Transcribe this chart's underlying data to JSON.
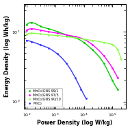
{
  "title": "",
  "xlabel": "Power Density (log W/kg)",
  "ylabel": "Energy Density (log Wh/kg)",
  "xlim": [
    80,
    300000.0
  ],
  "ylim": [
    0.8,
    25
  ],
  "background_color": "#ffffff",
  "series": [
    {
      "label": "MnO₂/GNS 99/1",
      "color": "#00cc00",
      "x": [
        100,
        150,
        300,
        600,
        1200,
        2500,
        5000,
        10000,
        20000,
        50000,
        100000,
        150000
      ],
      "y": [
        12.5,
        13.5,
        12.0,
        11.0,
        10.0,
        9.0,
        8.2,
        7.0,
        5.5,
        3.5,
        2.0,
        1.5
      ]
    },
    {
      "label": "MnO₂/GNS 97/3",
      "color": "#ff00ff",
      "x": [
        100,
        150,
        300,
        600,
        1200,
        2500,
        5000,
        10000,
        20000,
        50000,
        100000,
        150000
      ],
      "y": [
        10.5,
        11.0,
        10.5,
        10.0,
        9.5,
        9.0,
        8.5,
        7.8,
        6.5,
        4.5,
        3.0,
        2.2
      ]
    },
    {
      "label": "MnO₂/GNS 90/10",
      "color": "#88ff44",
      "x": [
        100,
        150,
        300,
        600,
        1200,
        2500,
        5000,
        10000,
        20000,
        50000,
        100000,
        150000,
        200000
      ],
      "y": [
        9.2,
        9.5,
        9.3,
        9.0,
        8.8,
        8.5,
        8.2,
        7.8,
        7.5,
        7.0,
        6.5,
        5.5,
        4.0
      ]
    },
    {
      "label": "MnO₂",
      "color": "#3333ff",
      "x": [
        100,
        150,
        300,
        600,
        1200,
        2500,
        5000,
        8000,
        12000
      ],
      "y": [
        7.5,
        7.2,
        6.5,
        5.8,
        4.8,
        3.5,
        2.2,
        1.5,
        1.1
      ]
    }
  ]
}
